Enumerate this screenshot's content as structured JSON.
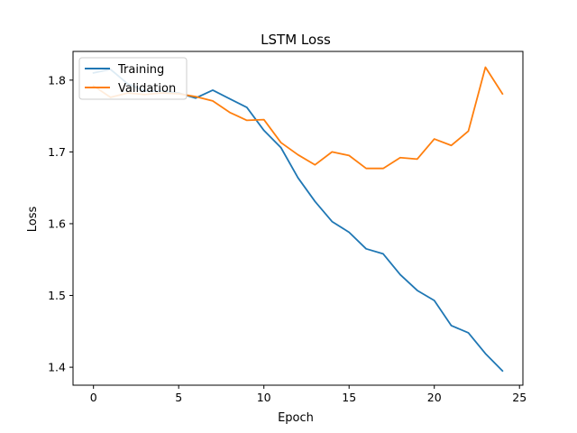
{
  "chart_data": {
    "type": "line",
    "title": "LSTM Loss",
    "xlabel": "Epoch",
    "ylabel": "Loss",
    "xlim": [
      -1.2,
      25.2
    ],
    "ylim": [
      1.375,
      1.84
    ],
    "xticks": [
      0,
      5,
      10,
      15,
      20,
      25
    ],
    "yticks": [
      1.4,
      1.5,
      1.6,
      1.7,
      1.8
    ],
    "xtick_labels": [
      "0",
      "5",
      "10",
      "15",
      "20",
      "25"
    ],
    "ytick_labels": [
      "1.4",
      "1.5",
      "1.6",
      "1.7",
      "1.8"
    ],
    "grid": false,
    "legend_position": "upper-left",
    "x": [
      0,
      1,
      2,
      3,
      4,
      5,
      6,
      7,
      8,
      9,
      10,
      11,
      12,
      13,
      14,
      15,
      16,
      17,
      18,
      19,
      20,
      21,
      22,
      23,
      24
    ],
    "series": [
      {
        "name": "Training",
        "color": "#1f77b4",
        "values": [
          1.81,
          1.815,
          1.795,
          1.785,
          1.785,
          1.782,
          1.775,
          1.786,
          1.774,
          1.762,
          1.73,
          1.706,
          1.664,
          1.631,
          1.603,
          1.588,
          1.565,
          1.558,
          1.529,
          1.507,
          1.493,
          1.458,
          1.448,
          1.419,
          1.395
        ]
      },
      {
        "name": "Validation",
        "color": "#ff7f0e",
        "values": [
          1.792,
          1.776,
          1.782,
          1.78,
          1.782,
          1.781,
          1.777,
          1.771,
          1.755,
          1.744,
          1.745,
          1.713,
          1.696,
          1.682,
          1.7,
          1.695,
          1.677,
          1.677,
          1.692,
          1.69,
          1.718,
          1.709,
          1.729,
          1.818,
          1.781
        ]
      }
    ]
  }
}
